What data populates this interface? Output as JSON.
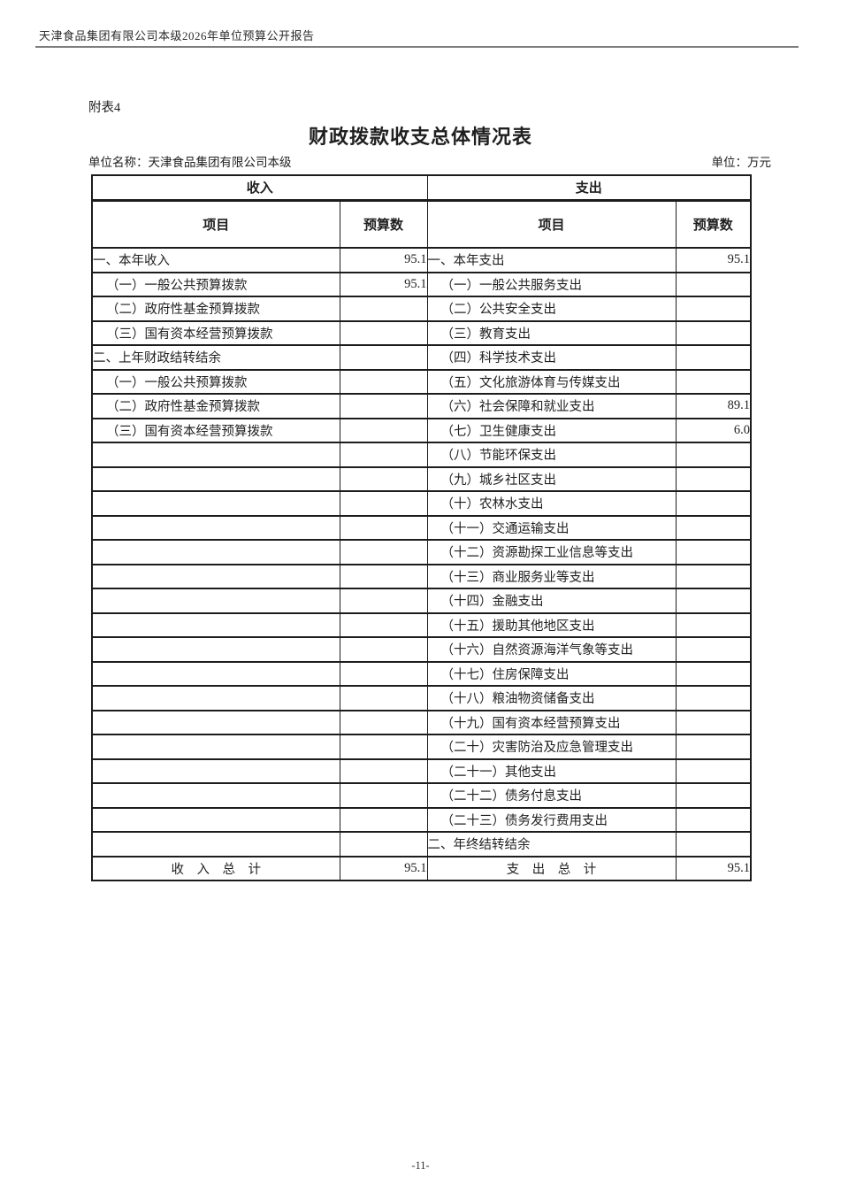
{
  "colors": {
    "table_border": "#1c1c1c",
    "header_rule": "#7d7d7d",
    "text": "#1f1f1f"
  },
  "header": {
    "report_title": "天津食品集团有限公司本级2026年单位预算公开报告"
  },
  "doc": {
    "appendix_label": "附表4",
    "title": "财政拨款收支总体情况表",
    "unit_name": "单位名称：天津食品集团有限公司本级",
    "unit_measure": "单位：万元",
    "page_number": "-11-"
  },
  "table": {
    "group_headers": [
      "收入",
      "支出"
    ],
    "column_headers": [
      "项目",
      "预算数",
      "项目",
      "预算数"
    ],
    "rows": [
      {
        "income_item": "一、本年收入",
        "income_value": "95.1",
        "expense_item": "一、本年支出",
        "expense_value": "95.1"
      },
      {
        "income_item": "（一）一般公共预算拨款",
        "income_value": "95.1",
        "expense_item": "（一）一般公共服务支出",
        "expense_value": ""
      },
      {
        "income_item": "（二）政府性基金预算拨款",
        "income_value": "",
        "expense_item": "（二）公共安全支出",
        "expense_value": ""
      },
      {
        "income_item": "（三）国有资本经营预算拨款",
        "income_value": "",
        "expense_item": "（三）教育支出",
        "expense_value": ""
      },
      {
        "income_item": "二、上年财政结转结余",
        "income_value": "",
        "expense_item": "（四）科学技术支出",
        "expense_value": ""
      },
      {
        "income_item": "（一）一般公共预算拨款",
        "income_value": "",
        "expense_item": "（五）文化旅游体育与传媒支出",
        "expense_value": ""
      },
      {
        "income_item": "（二）政府性基金预算拨款",
        "income_value": "",
        "expense_item": "（六）社会保障和就业支出",
        "expense_value": "89.1"
      },
      {
        "income_item": "（三）国有资本经营预算拨款",
        "income_value": "",
        "expense_item": "（七）卫生健康支出",
        "expense_value": "6.0"
      },
      {
        "income_item": "",
        "income_value": "",
        "expense_item": "（八）节能环保支出",
        "expense_value": ""
      },
      {
        "income_item": "",
        "income_value": "",
        "expense_item": "（九）城乡社区支出",
        "expense_value": ""
      },
      {
        "income_item": "",
        "income_value": "",
        "expense_item": "（十）农林水支出",
        "expense_value": ""
      },
      {
        "income_item": "",
        "income_value": "",
        "expense_item": "（十一）交通运输支出",
        "expense_value": ""
      },
      {
        "income_item": "",
        "income_value": "",
        "expense_item": "（十二）资源勘探工业信息等支出",
        "expense_value": ""
      },
      {
        "income_item": "",
        "income_value": "",
        "expense_item": "（十三）商业服务业等支出",
        "expense_value": ""
      },
      {
        "income_item": "",
        "income_value": "",
        "expense_item": "（十四）金融支出",
        "expense_value": ""
      },
      {
        "income_item": "",
        "income_value": "",
        "expense_item": "（十五）援助其他地区支出",
        "expense_value": ""
      },
      {
        "income_item": "",
        "income_value": "",
        "expense_item": "（十六）自然资源海洋气象等支出",
        "expense_value": ""
      },
      {
        "income_item": "",
        "income_value": "",
        "expense_item": "（十七）住房保障支出",
        "expense_value": ""
      },
      {
        "income_item": "",
        "income_value": "",
        "expense_item": "（十八）粮油物资储备支出",
        "expense_value": ""
      },
      {
        "income_item": "",
        "income_value": "",
        "expense_item": "（十九）国有资本经营预算支出",
        "expense_value": ""
      },
      {
        "income_item": "",
        "income_value": "",
        "expense_item": "（二十）灾害防治及应急管理支出",
        "expense_value": ""
      },
      {
        "income_item": "",
        "income_value": "",
        "expense_item": "（二十一）其他支出",
        "expense_value": ""
      },
      {
        "income_item": "",
        "income_value": "",
        "expense_item": "（二十二）债务付息支出",
        "expense_value": ""
      },
      {
        "income_item": "",
        "income_value": "",
        "expense_item": "（二十三）债务发行费用支出",
        "expense_value": ""
      },
      {
        "income_item": "",
        "income_value": "",
        "expense_item": "二、年终结转结余",
        "expense_value": ""
      },
      {
        "income_item": "收　入　总　计",
        "income_value": "95.1",
        "expense_item": "支　出　总　计",
        "expense_value": "95.1",
        "is_total": true
      }
    ]
  }
}
